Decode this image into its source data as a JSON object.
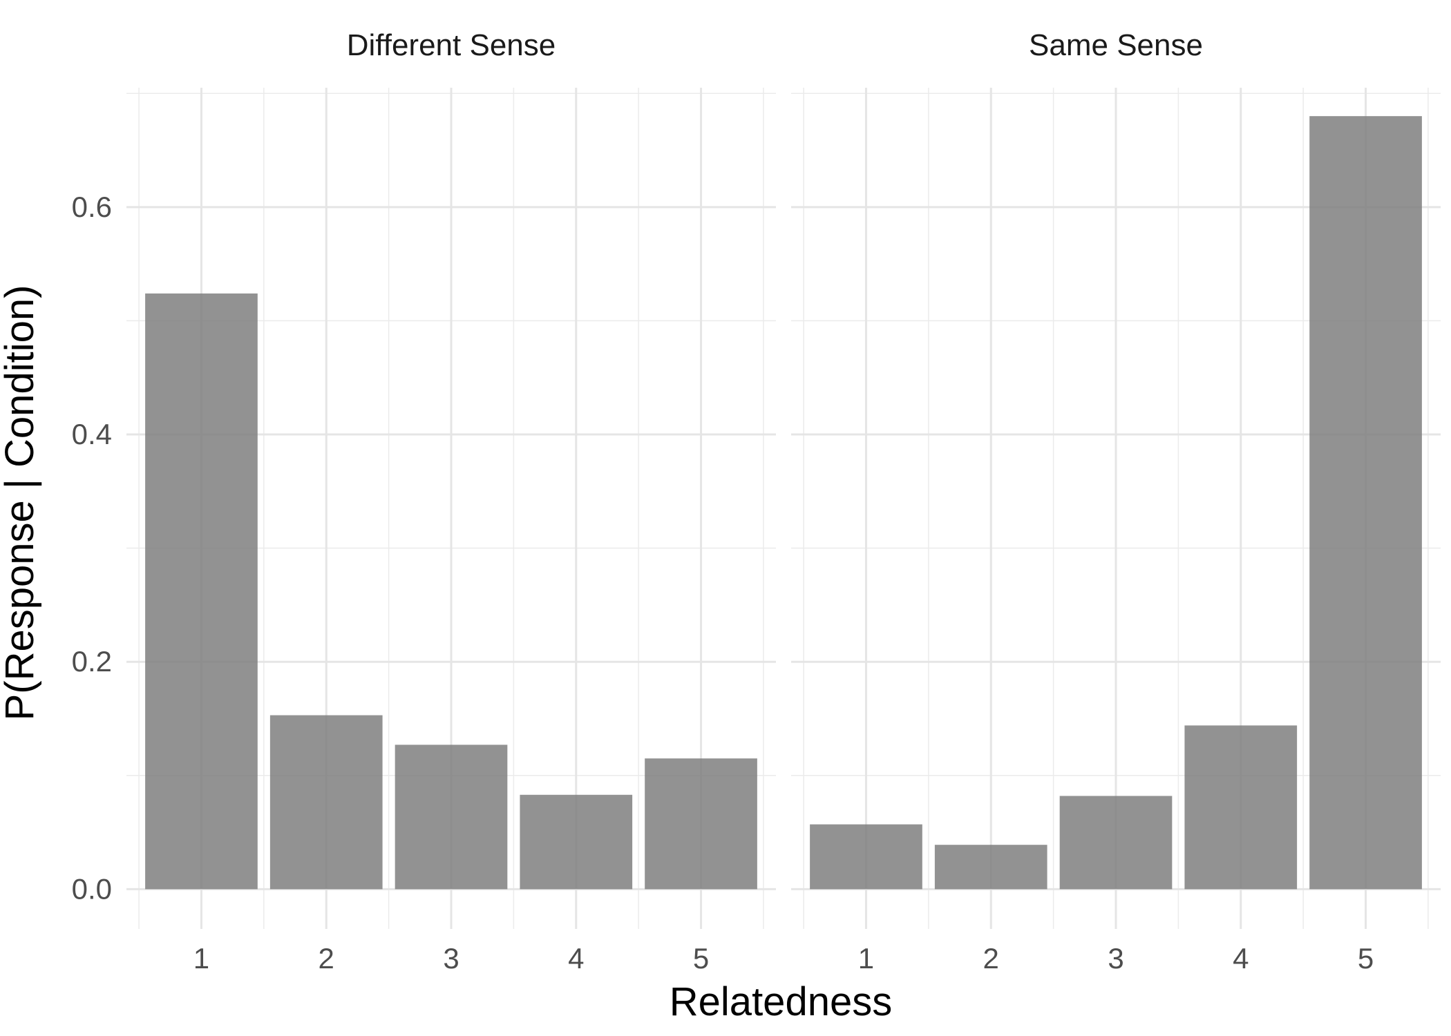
{
  "chart_data": {
    "type": "bar",
    "xlabel": "Relatedness",
    "ylabel": "P(Response | Condition)",
    "ylim": [
      -0.035,
      0.705
    ],
    "y_ticks": [
      0.0,
      0.2,
      0.4,
      0.6
    ],
    "y_tick_labels": [
      "0.0",
      "0.2",
      "0.4",
      "0.6"
    ],
    "categories": [
      "1",
      "2",
      "3",
      "4",
      "5"
    ],
    "grid": true,
    "bar_color": "#7f7f7f",
    "bar_opacity": 0.85,
    "panels": [
      {
        "title": "Different Sense",
        "values": [
          0.524,
          0.153,
          0.127,
          0.083,
          0.115
        ]
      },
      {
        "title": "Same Sense",
        "values": [
          0.057,
          0.039,
          0.082,
          0.144,
          0.68
        ]
      }
    ]
  }
}
